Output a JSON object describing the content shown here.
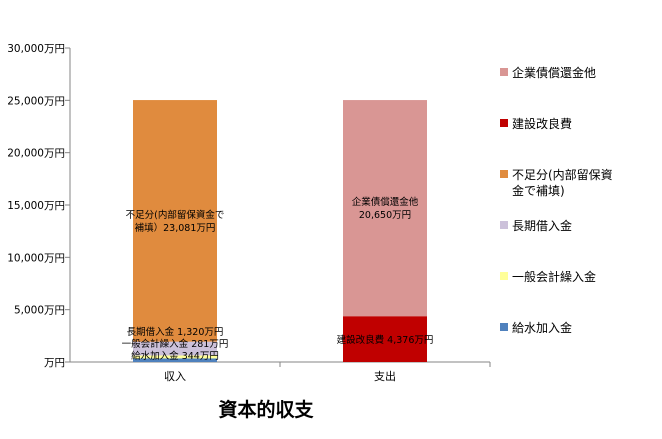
{
  "chart_data": {
    "type": "bar",
    "stacked": true,
    "title": "資本的収支",
    "xlabel": "",
    "ylabel": "",
    "ylim": [
      0,
      30000
    ],
    "ytick_step": 5000,
    "ytick_labels": [
      "万円",
      "5,000万円",
      "10,000万円",
      "15,000万円",
      "20,000万円",
      "25,000万円",
      "30,000万円"
    ],
    "grid": false,
    "legend_position": "right",
    "categories": [
      "収入",
      "支出"
    ],
    "series": [
      {
        "name": "給水加入金",
        "color": "#4f81bd",
        "values": [
          344,
          0
        ],
        "labels": [
          "給水加入金 344万円",
          ""
        ]
      },
      {
        "name": "一般会計繰入金",
        "color": "#ffff99",
        "values": [
          281,
          0
        ],
        "labels": [
          "一般会計繰入金 281万円",
          ""
        ]
      },
      {
        "name": "長期借入金",
        "color": "#ccc1da",
        "values": [
          1320,
          0
        ],
        "labels": [
          "長期借入金 1,320万円",
          ""
        ]
      },
      {
        "name": "不足分(内部留保資金で補填)",
        "color": "#e08b3e",
        "values": [
          23081,
          0
        ],
        "labels": [
          "不足分(内部留保資金で|補填）23,081万円",
          ""
        ]
      },
      {
        "name": "建設改良費",
        "color": "#c00000",
        "values": [
          0,
          4376
        ],
        "labels": [
          "",
          "建設改良費 4,376万円"
        ]
      },
      {
        "name": "企業債償還金他",
        "color": "#d99694",
        "values": [
          0,
          20650
        ],
        "labels": [
          "",
          "企業債償還金他|20,650万円"
        ]
      }
    ],
    "legend": [
      {
        "name": "企業債償還金他",
        "color": "#d99694"
      },
      {
        "name": "建設改良費",
        "color": "#c00000"
      },
      {
        "name": "不足分(内部留保資|金で補填)",
        "color": "#e08b3e"
      },
      {
        "name": "長期借入金",
        "color": "#ccc1da"
      },
      {
        "name": "一般会計繰入金",
        "color": "#ffff99"
      },
      {
        "name": "給水加入金",
        "color": "#4f81bd"
      }
    ]
  }
}
